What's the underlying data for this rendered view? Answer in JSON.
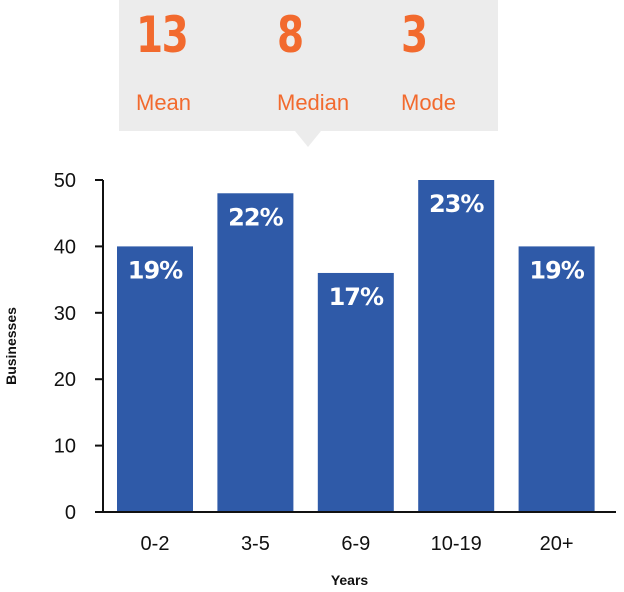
{
  "colors": {
    "accent": "#f26a2e",
    "bar": "#2f5aa8",
    "panel": "#ececec",
    "axis": "#111111"
  },
  "stats": [
    {
      "value": "13",
      "label": "Mean"
    },
    {
      "value": "8",
      "label": "Median"
    },
    {
      "value": "3",
      "label": "Mode"
    }
  ],
  "chart_data": {
    "type": "bar",
    "categories": [
      "0-2",
      "3-5",
      "6-9",
      "10-19",
      "20+"
    ],
    "values": [
      40,
      48,
      36,
      50,
      40
    ],
    "data_labels": [
      "19%",
      "22%",
      "17%",
      "23%",
      "19%"
    ],
    "xlabel": "Years",
    "ylabel": "Businesses",
    "ylim": [
      0,
      50
    ],
    "yticks": [
      0,
      10,
      20,
      30,
      40,
      50
    ],
    "grid": false
  }
}
